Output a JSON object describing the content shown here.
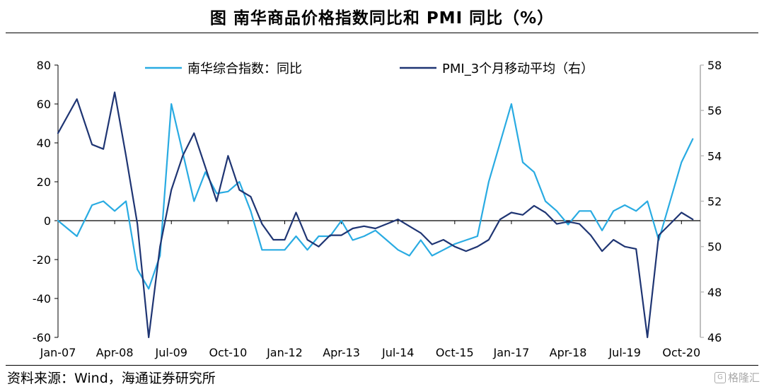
{
  "title": "图  南华商品价格指数同比和 PMI 同比（%）",
  "source": "资料来源：Wind，海通证券研究所",
  "watermark": "格隆汇",
  "chart_data": {
    "type": "line",
    "x": [
      "2007-01",
      "2007-06",
      "2007-10",
      "2008-01",
      "2008-04",
      "2008-07",
      "2008-10",
      "2009-01",
      "2009-04",
      "2009-07",
      "2009-10",
      "2010-01",
      "2010-04",
      "2010-07",
      "2010-10",
      "2011-01",
      "2011-04",
      "2011-07",
      "2011-10",
      "2012-01",
      "2012-04",
      "2012-07",
      "2012-10",
      "2013-01",
      "2013-04",
      "2013-07",
      "2013-10",
      "2014-01",
      "2014-04",
      "2014-07",
      "2014-10",
      "2015-01",
      "2015-04",
      "2015-07",
      "2015-10",
      "2016-01",
      "2016-04",
      "2016-07",
      "2016-10",
      "2017-01",
      "2017-04",
      "2017-07",
      "2017-10",
      "2018-01",
      "2018-04",
      "2018-07",
      "2018-10",
      "2019-01",
      "2019-04",
      "2019-07",
      "2019-10",
      "2020-01",
      "2020-04",
      "2020-07",
      "2020-10",
      "2021-01"
    ],
    "x_tick_labels": [
      "Jan-07",
      "Apr-08",
      "Jul-09",
      "Oct-10",
      "Jan-12",
      "Apr-13",
      "Jul-14",
      "Oct-15",
      "Jan-17",
      "Apr-18",
      "Jul-19",
      "Oct-20"
    ],
    "y_left": {
      "min": -60,
      "max": 80,
      "ticks": [
        -60,
        -40,
        -20,
        0,
        20,
        40,
        60,
        80
      ]
    },
    "y_right": {
      "min": 46,
      "max": 58,
      "ticks": [
        46,
        48,
        50,
        52,
        54,
        56,
        58
      ]
    },
    "legend_position": "top",
    "series": [
      {
        "name": "南华综合指数：同比",
        "color": "#29abe2",
        "axis": "left",
        "values": [
          0,
          -8,
          8,
          10,
          5,
          10,
          -25,
          -35,
          -18,
          60,
          35,
          10,
          25,
          14,
          15,
          20,
          5,
          -15,
          -15,
          -15,
          -8,
          -15,
          -8,
          -8,
          0,
          -10,
          -8,
          -5,
          -10,
          -15,
          -18,
          -10,
          -18,
          -15,
          -12,
          -10,
          -8,
          20,
          40,
          60,
          30,
          25,
          10,
          5,
          -2,
          5,
          5,
          -5,
          5,
          8,
          5,
          10,
          -10,
          10,
          30,
          42
        ]
      },
      {
        "name": "PMI_3个月移动平均（右）",
        "color": "#1f3573",
        "axis": "right",
        "values": [
          55.0,
          56.5,
          54.5,
          54.3,
          56.8,
          54.0,
          51.0,
          46.0,
          50.0,
          52.5,
          54.0,
          55.0,
          53.5,
          52.0,
          54.0,
          52.5,
          52.2,
          51.0,
          50.3,
          50.3,
          51.5,
          50.3,
          50.0,
          50.5,
          50.5,
          50.8,
          50.9,
          50.8,
          51.0,
          51.2,
          50.9,
          50.6,
          50.1,
          50.3,
          50.0,
          49.8,
          50.0,
          50.3,
          51.2,
          51.5,
          51.4,
          51.8,
          51.5,
          51.0,
          51.1,
          51.0,
          50.5,
          49.8,
          50.3,
          50.0,
          49.9,
          46.0,
          50.5,
          51.0,
          51.5,
          51.2
        ]
      }
    ]
  }
}
